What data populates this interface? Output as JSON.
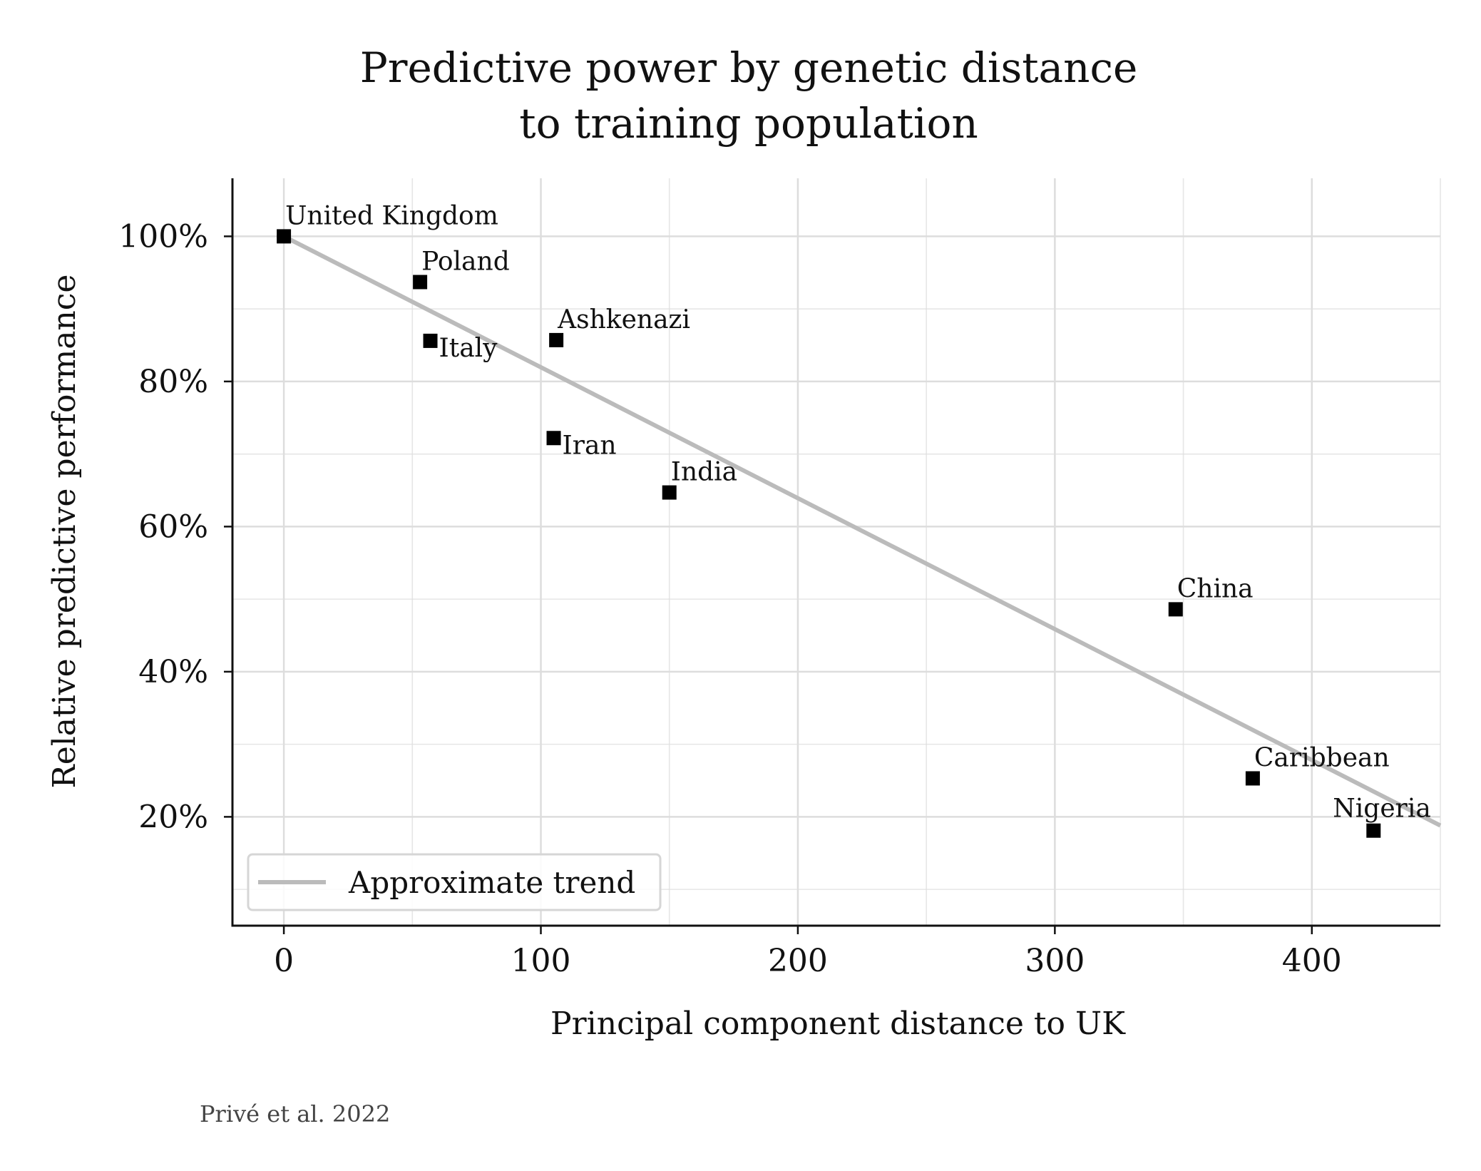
{
  "chart_data": {
    "type": "scatter",
    "title": [
      "Predictive power by genetic distance",
      "to training population"
    ],
    "xlabel": "Principal component distance to UK",
    "ylabel": "Relative predictive performance",
    "xlim": [
      -20,
      450
    ],
    "ylim": [
      5,
      108
    ],
    "xticks": [
      0,
      100,
      200,
      300,
      400
    ],
    "xtick_labels": [
      "0",
      "100",
      "200",
      "300",
      "400"
    ],
    "yticks": [
      20,
      40,
      60,
      80,
      100
    ],
    "ytick_labels": [
      "20%",
      "40%",
      "60%",
      "80%",
      "100%"
    ],
    "grid": true,
    "points": [
      {
        "label": "United Kingdom",
        "x": 0,
        "y": 100,
        "label_pos": "above"
      },
      {
        "label": "Poland",
        "x": 53,
        "y": 93.7,
        "label_pos": "above"
      },
      {
        "label": "Italy",
        "x": 57,
        "y": 85.6,
        "label_pos": "below"
      },
      {
        "label": "Ashkenazi",
        "x": 106,
        "y": 85.7,
        "label_pos": "above"
      },
      {
        "label": "Iran",
        "x": 105,
        "y": 72.2,
        "label_pos": "below"
      },
      {
        "label": "India",
        "x": 150,
        "y": 64.7,
        "label_pos": "above"
      },
      {
        "label": "China",
        "x": 347,
        "y": 48.6,
        "label_pos": "above"
      },
      {
        "label": "Caribbean",
        "x": 377,
        "y": 25.3,
        "label_pos": "above"
      },
      {
        "label": "Nigeria",
        "x": 424,
        "y": 18.1,
        "label_pos": "above"
      }
    ],
    "trend": {
      "name": "Approximate trend",
      "x": [
        0,
        450
      ],
      "y": [
        100,
        18.8
      ],
      "color": "#bbbbbb"
    },
    "legend": {
      "entries": [
        "Approximate trend"
      ],
      "placement": "lower-left"
    },
    "source": "Privé et al. 2022",
    "colors": {
      "points": "#000000",
      "trend": "#bbbbbb",
      "grid": "#dddddd",
      "axis": "#111111"
    }
  }
}
